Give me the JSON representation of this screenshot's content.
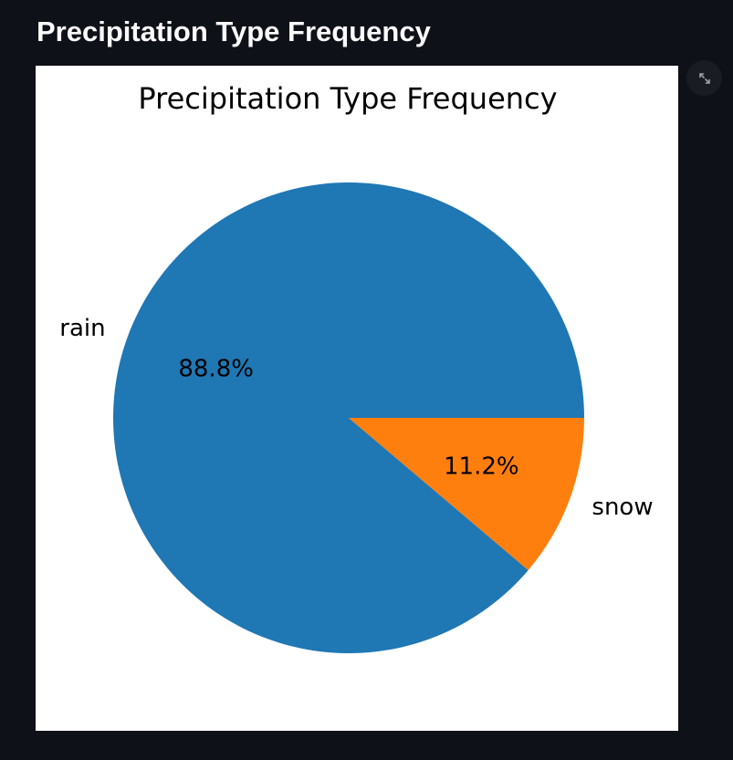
{
  "page": {
    "heading": "Precipitation Type Frequency"
  },
  "toolbar": {
    "expand_icon": "fullscreen-expand-icon"
  },
  "chart_data": {
    "type": "pie",
    "title": "Precipitation Type Frequency",
    "categories": [
      "rain",
      "snow"
    ],
    "values": [
      88.8,
      11.2
    ],
    "value_labels": [
      "88.8%",
      "11.2%"
    ],
    "colors": [
      "#1f77b4",
      "#ff7f0e"
    ],
    "start_angle": "0° (3 o'clock), counter-clockwise",
    "legend": "none"
  }
}
